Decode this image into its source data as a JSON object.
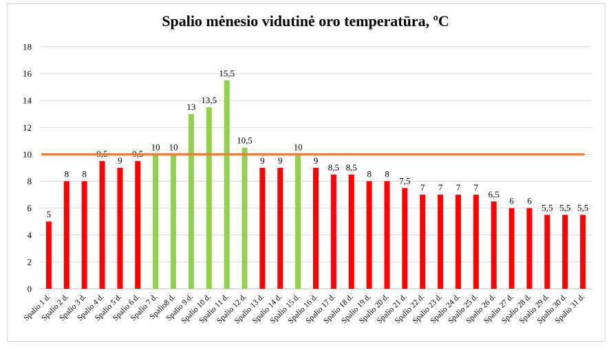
{
  "chart_data": {
    "type": "bar",
    "title": "Spalio mėnesio vidutinė oro temperatūra, ºC",
    "xlabel": "",
    "ylabel": "",
    "ylim": [
      0,
      18
    ],
    "yticks": [
      0,
      2,
      4,
      6,
      8,
      10,
      12,
      14,
      16,
      18
    ],
    "grid": true,
    "reference_line": {
      "value": 10,
      "color": "#ed7d31"
    },
    "colors": {
      "below": "#ff0000",
      "at_or_above": "#92d050"
    },
    "categories": [
      "Spalio 1 d.",
      "Spalio 2 d.",
      "Spalio 3 d.",
      "Spalio 4 d.",
      "Spalio 5 d.",
      "Spalio 6 d.",
      "Spalio 7 d.",
      "Spalio8 d.",
      "Spalio 9 d.",
      "Spalio 10 d.",
      "Spalio 11 d.",
      "Spalio 12 d.",
      "Spalio 13 d.",
      "Spalio 14 d.",
      "Spalio 15 d.",
      "Spalio 16 d.",
      "Spalio 17 d.",
      "Spalio 18 d.",
      "Spalio 19 d.",
      "Spalio 20 d.",
      "Spalio 21 d.",
      "Spalio 22 d.",
      "Spalio 23 d.",
      "Spalio 24 d.",
      "Spalio 25 d.",
      "Spalio 26 d.",
      "Spalio 27 d.",
      "Spalio 28 d.",
      "Spalio 29 d.",
      "Spalio 30 d.",
      "Spalio 31 d."
    ],
    "values": [
      5,
      8,
      8,
      9.5,
      9,
      9.5,
      10,
      10,
      13,
      13.5,
      15.5,
      10.5,
      9,
      9,
      10,
      9,
      8.5,
      8.5,
      8,
      8,
      7.5,
      7,
      7,
      7,
      7,
      6.5,
      6,
      6,
      5.5,
      5.5,
      5.5
    ],
    "value_labels": [
      "5",
      "8",
      "8",
      "9,5",
      "9",
      "9,5",
      "10",
      "10",
      "13",
      "13,5",
      "15,5",
      "10,5",
      "9",
      "9",
      "10",
      "9",
      "8,5",
      "8,5",
      "8",
      "8",
      "7,5",
      "7",
      "7",
      "7",
      "7",
      "6,5",
      "6",
      "6",
      "5,5",
      "5,5",
      "5,5"
    ]
  }
}
